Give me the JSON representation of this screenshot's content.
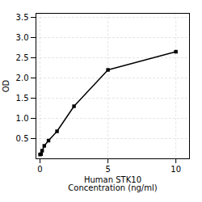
{
  "chart_data": {
    "type": "line",
    "x": [
      0.0,
      0.078,
      0.156,
      0.313,
      0.625,
      1.25,
      2.5,
      5.0,
      10.0
    ],
    "values": [
      0.105,
      0.115,
      0.2,
      0.32,
      0.45,
      0.68,
      1.3,
      2.2,
      2.65
    ],
    "marker": "square",
    "line_style": "solid",
    "xlabel": "Human STK10\nConcentration (ng/ml)",
    "ylabel": "OD",
    "xlim": [
      -0.3,
      11
    ],
    "ylim": [
      0,
      3.6
    ],
    "xticks": [
      0,
      5,
      10
    ],
    "yticks": [
      0.5,
      {
        "value": 1,
        "label": "1.0"
      },
      1.5,
      {
        "value": 2,
        "label": "2.0"
      },
      2.5,
      {
        "value": 3,
        "label": "3.0"
      },
      3.5
    ],
    "grid": true
  }
}
